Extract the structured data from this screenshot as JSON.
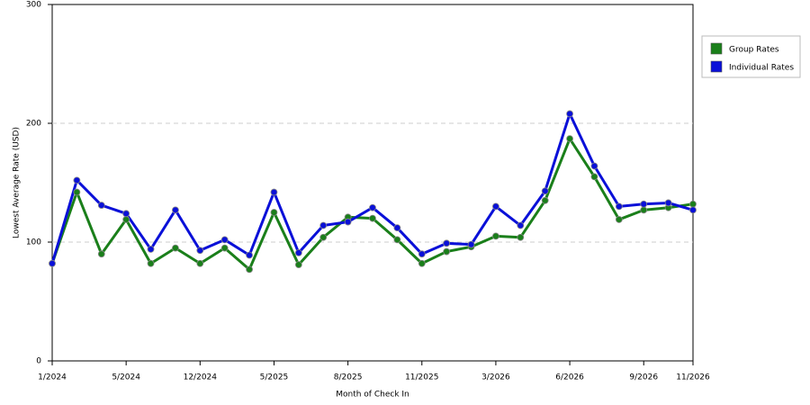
{
  "chart_data": {
    "type": "line",
    "x_label": "Month of Check In",
    "y_label": "Lowest Average Rate (USD)",
    "categories": [
      "1/2024",
      null,
      null,
      "5/2024",
      null,
      null,
      "12/2024",
      null,
      null,
      "5/2025",
      null,
      null,
      "8/2025",
      null,
      null,
      "11/2025",
      null,
      null,
      "3/2026",
      null,
      null,
      "6/2026",
      null,
      null,
      "9/2026",
      null,
      "11/2026"
    ],
    "series": [
      {
        "name": "Group Rates",
        "color": "#1a7f1a",
        "values": [
          82,
          142,
          90,
          119,
          82,
          95,
          82,
          95,
          77,
          125,
          81,
          104,
          121,
          120,
          102,
          82,
          92,
          96,
          105,
          104,
          135,
          187,
          155,
          119,
          127,
          129,
          132
        ]
      },
      {
        "name": "Individual Rates",
        "color": "#0a10d8",
        "values": [
          82,
          152,
          131,
          124,
          94,
          127,
          93,
          102,
          89,
          142,
          91,
          114,
          117,
          129,
          112,
          90,
          99,
          98,
          130,
          114,
          143,
          208,
          164,
          130,
          132,
          133,
          127
        ]
      }
    ],
    "ylim": [
      0,
      300
    ],
    "yticks": [
      0,
      100,
      200,
      300
    ],
    "grid": true,
    "legend": "top-right"
  }
}
